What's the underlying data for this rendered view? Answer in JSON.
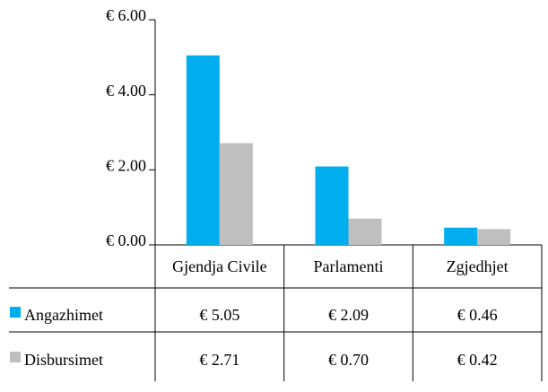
{
  "chart_data": {
    "type": "bar",
    "categories": [
      "Gjendja Civile",
      "Parlamenti",
      "Zgjedhjet"
    ],
    "series": [
      {
        "name": "Angazhimet",
        "color": "#00aeef",
        "values": [
          5.05,
          2.09,
          0.46
        ],
        "value_labels": [
          "€ 5.05",
          "€ 2.09",
          "€ 0.46"
        ]
      },
      {
        "name": "Disbursimet",
        "color": "#bfbfbf",
        "values": [
          2.71,
          0.7,
          0.42
        ],
        "value_labels": [
          "€ 2.71",
          "€ 0.70",
          "€ 0.42"
        ]
      }
    ],
    "ylim": [
      0,
      6
    ],
    "yticks": [
      {
        "value": 0,
        "label": "€ 0.00"
      },
      {
        "value": 2,
        "label": "€ 2.00"
      },
      {
        "value": 4,
        "label": "€ 4.00"
      },
      {
        "value": 6,
        "label": "€ 6.00"
      }
    ]
  }
}
